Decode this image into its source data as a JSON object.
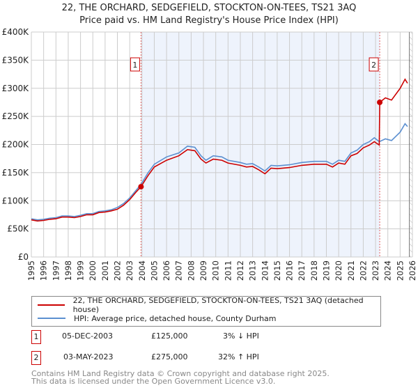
{
  "title": "22, THE ORCHARD, SEDGEFIELD, STOCKTON-ON-TEES, TS21 3AQ",
  "subtitle": "Price paid vs. HM Land Registry's House Price Index (HPI)",
  "colors": {
    "price": "#cc0000",
    "hpi": "#5b8fd0",
    "shade": "#eef3fc",
    "grid": "#cccccc",
    "marker": "#cc0000"
  },
  "chart_data": {
    "type": "line",
    "title": "22, THE ORCHARD, SEDGEFIELD, STOCKTON-ON-TEES, TS21 3AQ",
    "xlabel": "",
    "ylabel": "",
    "xlim": [
      1995,
      2026
    ],
    "ylim": [
      0,
      400000
    ],
    "yticks": [
      0,
      50000,
      100000,
      150000,
      200000,
      250000,
      300000,
      350000,
      400000
    ],
    "ytick_labels": [
      "£0",
      "£50K",
      "£100K",
      "£150K",
      "£200K",
      "£250K",
      "£300K",
      "£350K",
      "£400K"
    ],
    "xticks": [
      "1995",
      "1996",
      "1997",
      "1998",
      "1999",
      "2000",
      "2001",
      "2002",
      "2003",
      "2004",
      "2005",
      "2006",
      "2007",
      "2008",
      "2009",
      "2010",
      "2011",
      "2012",
      "2013",
      "2014",
      "2015",
      "2016",
      "2017",
      "2018",
      "2019",
      "2020",
      "2021",
      "2022",
      "2023",
      "2024",
      "2025",
      "2026"
    ],
    "grid": true,
    "shaded_range": [
      2003.92,
      2023.34
    ],
    "forecast_hatch_from": 2025.75,
    "series": [
      {
        "name": "22, THE ORCHARD, SEDGEFIELD, STOCKTON-ON-TEES, TS21 3AQ (detached house)",
        "x": [
          1995,
          1995.5,
          1996,
          1996.5,
          1997,
          1997.5,
          1998,
          1998.5,
          1999,
          1999.5,
          2000,
          2000.5,
          2001,
          2001.5,
          2002,
          2002.5,
          2003,
          2003.5,
          2003.92,
          2004.5,
          2005,
          2006,
          2007,
          2007.7,
          2008.3,
          2008.8,
          2009.2,
          2009.8,
          2010.5,
          2011,
          2012,
          2012.5,
          2013,
          2013.5,
          2014,
          2014.5,
          2015,
          2016,
          2017,
          2018,
          2019,
          2019.5,
          2020,
          2020.5,
          2021,
          2021.5,
          2022,
          2022.5,
          2022.9,
          2023.3,
          2023.34,
          2023.8,
          2024.3,
          2025,
          2025.4,
          2025.6
        ],
        "values": [
          66000,
          64000,
          65000,
          67000,
          68000,
          71000,
          71000,
          70000,
          72000,
          75000,
          75000,
          79000,
          80000,
          82000,
          85000,
          92000,
          102000,
          115000,
          125000,
          145000,
          160000,
          172000,
          180000,
          191000,
          189000,
          174000,
          167000,
          174000,
          172000,
          167000,
          163000,
          160000,
          161000,
          155000,
          148000,
          158000,
          157000,
          159000,
          163000,
          165000,
          165000,
          160000,
          167000,
          165000,
          180000,
          184000,
          194000,
          199000,
          205000,
          199000,
          275000,
          283000,
          279000,
          300000,
          316000,
          309000
        ]
      },
      {
        "name": "HPI: Average price, detached house, County Durham",
        "x": [
          1995,
          1995.5,
          1996,
          1996.5,
          1997,
          1997.5,
          1998,
          1998.5,
          1999,
          1999.5,
          2000,
          2000.5,
          2001,
          2001.5,
          2002,
          2002.5,
          2003,
          2003.5,
          2003.92,
          2004.5,
          2005,
          2006,
          2007,
          2007.7,
          2008.3,
          2008.8,
          2009.2,
          2009.8,
          2010.5,
          2011,
          2012,
          2012.5,
          2013,
          2013.5,
          2014,
          2014.5,
          2015,
          2016,
          2017,
          2018,
          2019,
          2019.5,
          2020,
          2020.5,
          2021,
          2021.5,
          2022,
          2022.5,
          2022.9,
          2023.3,
          2023.8,
          2024.3,
          2025,
          2025.4,
          2025.6
        ],
        "values": [
          68000,
          66000,
          67000,
          69000,
          70000,
          73000,
          73000,
          72000,
          74000,
          77000,
          77000,
          81000,
          82000,
          84000,
          88000,
          95000,
          105000,
          118000,
          129000,
          150000,
          165000,
          178000,
          185000,
          197000,
          195000,
          180000,
          172000,
          180000,
          178000,
          172000,
          168000,
          165000,
          166000,
          160000,
          153000,
          163000,
          162000,
          164000,
          168000,
          170000,
          170000,
          165000,
          172000,
          170000,
          185000,
          190000,
          200000,
          205000,
          212000,
          205000,
          210000,
          207000,
          222000,
          237000,
          232000
        ]
      }
    ],
    "annotations": [
      {
        "label": "1",
        "x": 2003.92,
        "y": 125000
      },
      {
        "label": "2",
        "x": 2023.34,
        "y": 275000
      }
    ]
  },
  "legend": {
    "price_label": "22, THE ORCHARD, SEDGEFIELD, STOCKTON-ON-TEES, TS21 3AQ (detached house)",
    "hpi_label": "HPI: Average price, detached house, County Durham"
  },
  "transactions": [
    {
      "num": "1",
      "date": "05-DEC-2003",
      "price": "£125,000",
      "hpi": "3% ↓ HPI"
    },
    {
      "num": "2",
      "date": "03-MAY-2023",
      "price": "£275,000",
      "hpi": "32% ↑ HPI"
    }
  ],
  "footer": {
    "line1": "Contains HM Land Registry data © Crown copyright and database right 2025.",
    "line2": "This data is licensed under the Open Government Licence v3.0."
  }
}
